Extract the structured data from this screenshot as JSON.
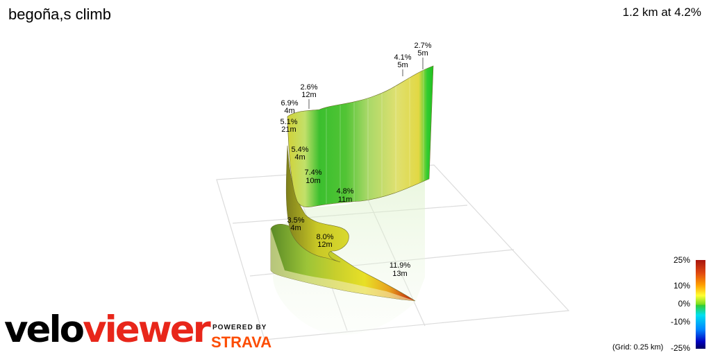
{
  "header": {
    "title": "begoña,s climb",
    "summary": "1.2 km at 4.2%"
  },
  "branding": {
    "logo_part1": "velo",
    "logo_part2": "viewer",
    "powered_by": "POWERED BY",
    "strava": "STRAVA"
  },
  "legend": {
    "labels": [
      "25%",
      "10%",
      "0%",
      "-10%",
      "-25%"
    ],
    "grid_note": "(Grid: 0.25 km)"
  },
  "chart_data": {
    "type": "3d-elevation-profile",
    "title": "begoña,s climb",
    "subtitle": "1.2 km at 4.2%",
    "segments": [
      {
        "gradient": "11.9%",
        "gain": "13m"
      },
      {
        "gradient": "8.0%",
        "gain": "12m"
      },
      {
        "gradient": "3.5%",
        "gain": "4m"
      },
      {
        "gradient": "7.4%",
        "gain": "10m"
      },
      {
        "gradient": "5.4%",
        "gain": "4m"
      },
      {
        "gradient": "5.1%",
        "gain": "21m"
      },
      {
        "gradient": "6.9%",
        "gain": "4m"
      },
      {
        "gradient": "2.6%",
        "gain": "12m"
      },
      {
        "gradient": "4.8%",
        "gain": "11m"
      },
      {
        "gradient": "4.1%",
        "gain": "5m"
      },
      {
        "gradient": "2.7%",
        "gain": "5m"
      }
    ],
    "color_scale": {
      "min": -25,
      "max": 25,
      "ticks": [
        25,
        10,
        0,
        -10,
        -25
      ]
    },
    "grid": "0.25 km"
  }
}
